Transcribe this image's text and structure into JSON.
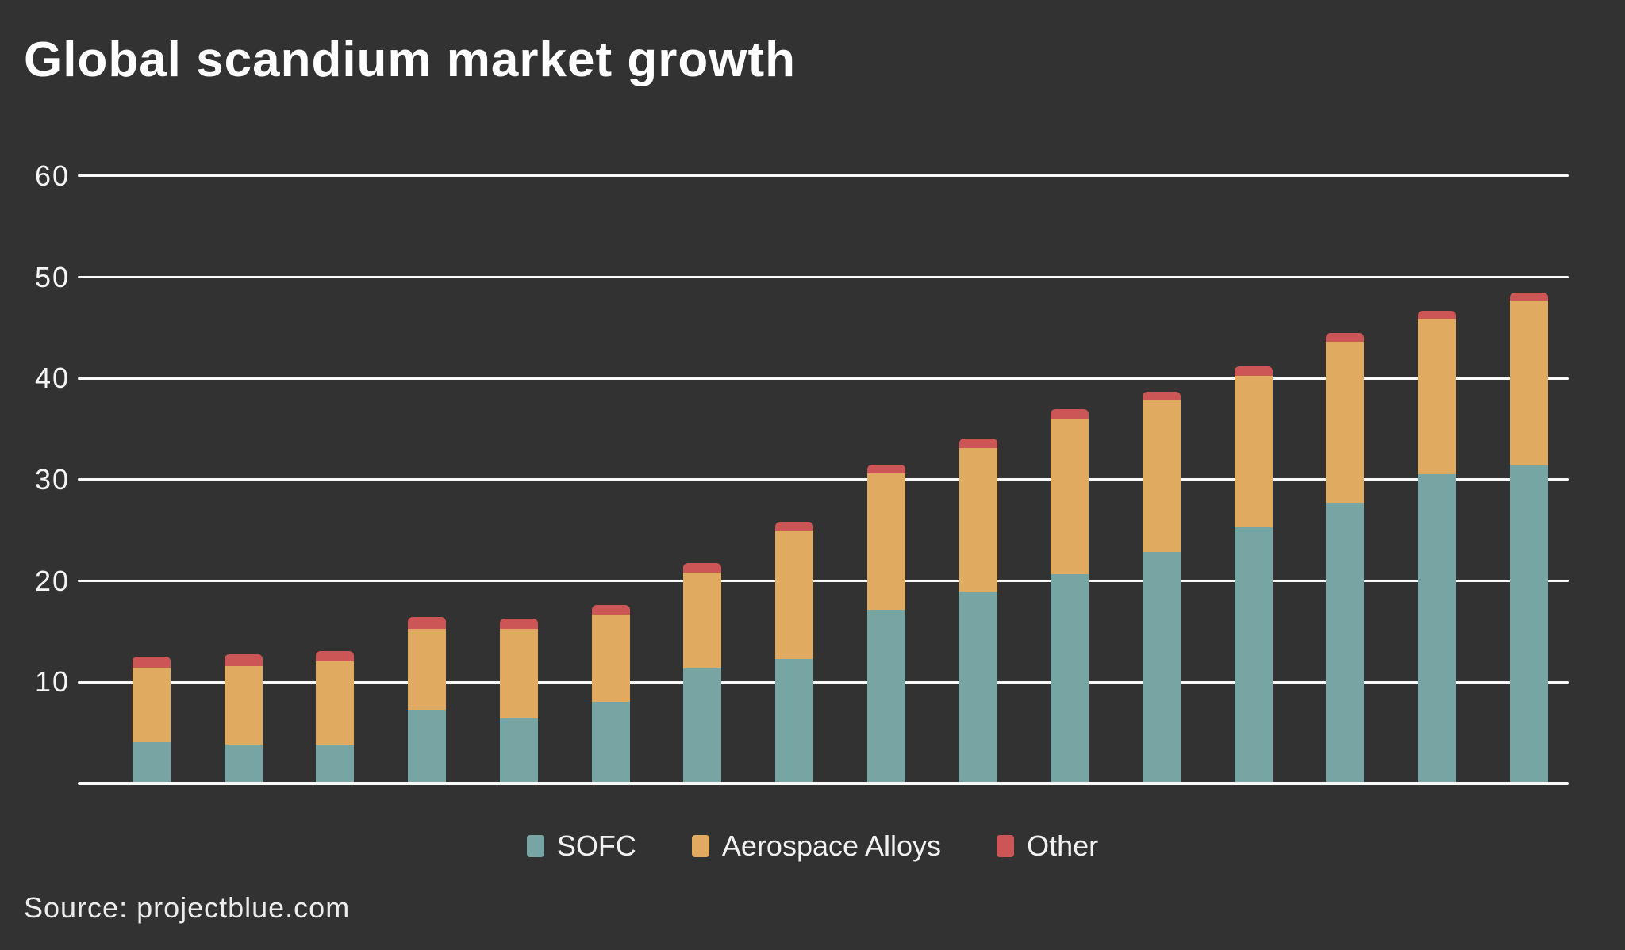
{
  "title": "Global scandium market growth",
  "source": "Source: projectblue.com",
  "colors": {
    "background": "#323232",
    "text": "#ffffff",
    "gridline": "#fafafa",
    "sofc": "#76a5a3",
    "aerospace": "#e0aa60",
    "other": "#cc5656"
  },
  "legend": {
    "items": [
      {
        "label": "SOFC"
      },
      {
        "label": "Aerospace Alloys"
      },
      {
        "label": "Other"
      }
    ]
  },
  "chart_data": {
    "type": "bar",
    "stacked": true,
    "title": "Global scandium market growth",
    "xlabel": "",
    "ylabel": "",
    "x_tick_labels_visible": false,
    "categories": [
      "",
      "",
      "",
      "",
      "",
      "",
      "",
      "",
      "",
      "",
      "",
      "",
      "",
      "",
      "",
      ""
    ],
    "series": [
      {
        "name": "SOFC",
        "color": "#76a5a3",
        "values": [
          3.9,
          3.7,
          3.7,
          7.1,
          6.3,
          7.9,
          11.2,
          12.1,
          17.0,
          18.8,
          20.5,
          22.7,
          25.1,
          27.6,
          30.4,
          31.3
        ]
      },
      {
        "name": "Aerospace Alloys",
        "color": "#e0aa60",
        "values": [
          7.4,
          7.7,
          8.2,
          8.0,
          8.8,
          8.6,
          9.5,
          12.7,
          13.5,
          14.2,
          15.4,
          15.0,
          15.0,
          15.9,
          15.3,
          16.2
        ]
      },
      {
        "name": "Other",
        "color": "#cc5656",
        "values": [
          1.1,
          1.2,
          1.0,
          1.2,
          1.0,
          1.0,
          0.9,
          0.9,
          0.8,
          0.9,
          0.9,
          0.8,
          0.9,
          0.8,
          0.8,
          0.8
        ]
      }
    ],
    "stacked_totals": [
      12.4,
      12.6,
      12.9,
      16.3,
      16.1,
      17.5,
      21.6,
      25.7,
      31.3,
      33.9,
      36.8,
      38.5,
      41.0,
      44.3,
      46.5,
      48.3
    ],
    "ylim": [
      0,
      60
    ],
    "y_ticks": [
      10,
      20,
      30,
      40,
      50,
      60
    ],
    "grid": true,
    "legend_position": "bottom-center"
  }
}
